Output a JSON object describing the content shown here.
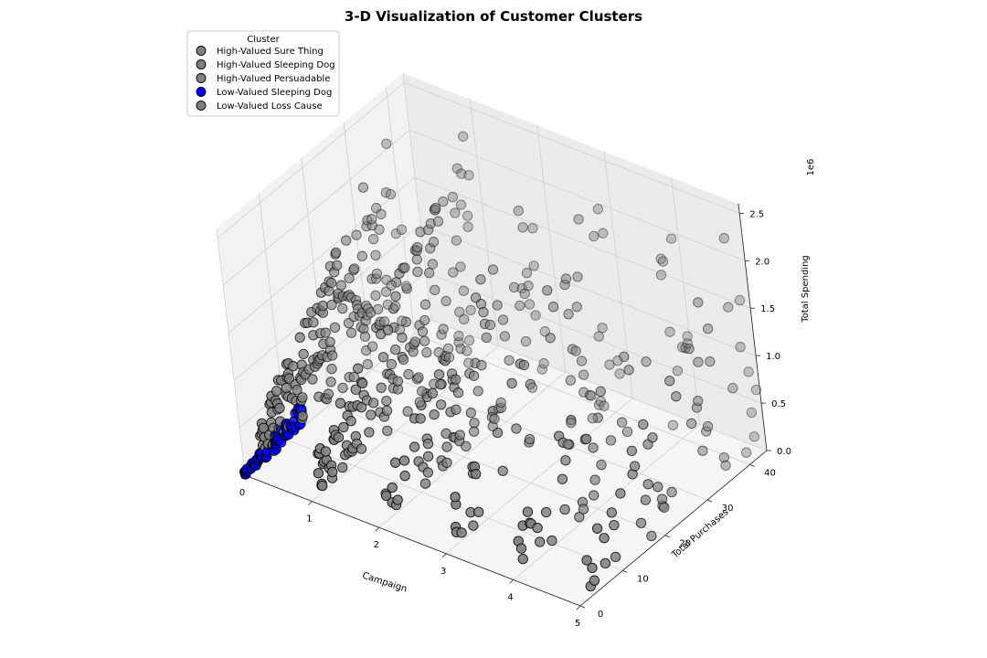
{
  "chart_data": {
    "type": "scatter",
    "projection": "3d",
    "title": "3-D Visualization of Customer Clusters",
    "xlabel": "Campaign",
    "ylabel": "Total Purchases",
    "zlabel": "Total Spending",
    "z_offset_label": "1e6",
    "xlim": [
      0,
      5
    ],
    "ylim": [
      0,
      44
    ],
    "zlim": [
      0,
      2.6
    ],
    "xticks": [
      "0",
      "1",
      "2",
      "3",
      "4",
      "5"
    ],
    "yticks": [
      "0",
      "10",
      "20",
      "30",
      "40"
    ],
    "zticks": [
      "0.0",
      "0.5",
      "1.0",
      "1.5",
      "2.0",
      "2.5"
    ],
    "grid": true,
    "legend": {
      "title": "Cluster",
      "placement": "top-left",
      "entries": [
        {
          "name": "High-Valued Sure Thing",
          "color": "#808080"
        },
        {
          "name": "High-Valued Sleeping Dog",
          "color": "#808080"
        },
        {
          "name": "High-Valued Persuadable",
          "color": "#808080"
        },
        {
          "name": "Low-Valued Sleeping Dog",
          "color": "#0000ff"
        },
        {
          "name": "Low-Valued Loss Cause",
          "color": "#808080"
        }
      ]
    },
    "series": [
      {
        "name": "High-Valued Sure Thing",
        "color": "#808080",
        "x": 0,
        "n": 170,
        "y_range": [
          4,
          40
        ],
        "z_range": [
          0.05,
          2.2
        ]
      },
      {
        "name": "High-Valued Sleeping Dog",
        "color": "#808080",
        "x": 1,
        "n": 140,
        "y_range": [
          2,
          42
        ],
        "z_range": [
          0.05,
          2.4
        ]
      },
      {
        "name": "High-Valued Persuadable",
        "color": "#808080",
        "x": 2,
        "n": 90,
        "y_range": [
          2,
          42
        ],
        "z_range": [
          0.05,
          2.3
        ]
      },
      {
        "name": "Low-Valued Loss Cause",
        "color": "#808080",
        "x": [
          3,
          4,
          5
        ],
        "n": 150,
        "y_range": [
          2,
          44
        ],
        "z_range": [
          0.05,
          2.6
        ]
      },
      {
        "name": "Low-Valued Sleeping Dog",
        "color": "#0000ff",
        "x": 0,
        "n": 70,
        "y_range": [
          0,
          14
        ],
        "z_range": [
          0.0,
          0.25
        ]
      }
    ]
  }
}
